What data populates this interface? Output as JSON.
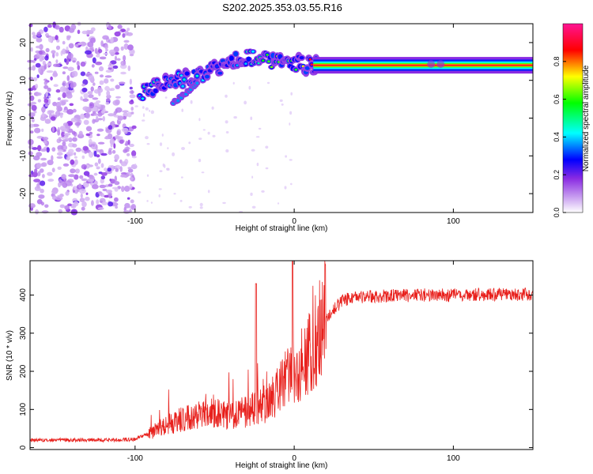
{
  "title": "S202.2025.353.03.55.R16",
  "chart_data": [
    {
      "type": "heatmap",
      "xlabel": "Height of straight line (km)",
      "ylabel": "Frequency (Hz)",
      "xlim": [
        -166,
        150
      ],
      "ylim": [
        -25,
        25
      ],
      "xticks": [
        -100,
        0,
        100
      ],
      "yticks": [
        -20,
        -10,
        0,
        10,
        20
      ],
      "grid": false,
      "colorbar": {
        "label": "Normalized spectral amplitude",
        "range": [
          0,
          1
        ],
        "ticks": [
          0.0,
          0.2,
          0.4,
          0.6,
          0.8
        ],
        "colormap": [
          "#ffffff",
          "#8a2be2",
          "#0000ff",
          "#00ffff",
          "#00ff00",
          "#ffff00",
          "#ff0000",
          "#ff1493"
        ]
      },
      "ridge": {
        "x": [
          -97,
          -90,
          -80,
          -72,
          -62,
          -55,
          -45,
          -38,
          -30,
          -20,
          -10,
          0,
          10,
          20,
          40,
          60,
          80,
          90,
          100,
          120,
          150
        ],
        "y": [
          6.5,
          7.5,
          9,
          10,
          11,
          12,
          13.5,
          15,
          16,
          15.5,
          15,
          14.5,
          14,
          14,
          14,
          14,
          14,
          14.2,
          14,
          14,
          14
        ],
        "amplitude": [
          0.4,
          0.45,
          0.35,
          0.4,
          0.45,
          0.4,
          0.35,
          0.4,
          0.45,
          0.55,
          0.6,
          0.65,
          0.85,
          0.92,
          0.92,
          0.92,
          0.9,
          0.88,
          0.92,
          0.92,
          0.92
        ]
      },
      "noise_region": {
        "x_range": [
          -166,
          -100
        ],
        "amplitude": 0.15
      }
    },
    {
      "type": "line",
      "xlabel": "Height of straight line (km)",
      "ylabel": "SNR (10 * v/v)",
      "xlim": [
        -166,
        150
      ],
      "ylim": [
        -5,
        490
      ],
      "xticks": [
        -100,
        0,
        100
      ],
      "yticks": [
        0,
        100,
        200,
        300,
        400
      ],
      "grid": false,
      "series": [
        {
          "color": "#e8201c",
          "x": [
            -166,
            -140,
            -110,
            -100,
            -90,
            -80,
            -70,
            -60,
            -50,
            -40,
            -30,
            -20,
            -10,
            0,
            10,
            20,
            30,
            40,
            60,
            80,
            100,
            120,
            150
          ],
          "values": [
            20,
            20,
            20,
            22,
            40,
            60,
            75,
            85,
            90,
            85,
            95,
            110,
            150,
            200,
            250,
            340,
            385,
            395,
            398,
            400,
            400,
            401,
            402
          ]
        }
      ]
    }
  ]
}
